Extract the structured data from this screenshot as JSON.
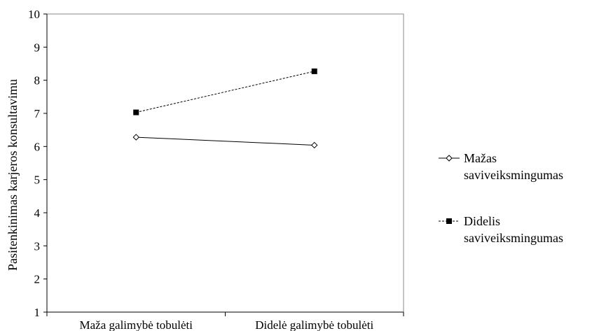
{
  "chart_data": {
    "type": "line",
    "title": "",
    "xlabel": "",
    "ylabel": "Pasitenkinimas karjeros konsultavimu",
    "categories": [
      "Maža galimybė tobulėti",
      "Didelė galimybė tobulėti"
    ],
    "ylim": [
      1,
      10
    ],
    "yticks": [
      "1",
      "2",
      "3",
      "4",
      "5",
      "6",
      "7",
      "8",
      "9",
      "10"
    ],
    "grid": false,
    "legend_position": "right",
    "series": [
      {
        "name": "Mažas saviveiksmingumas",
        "name_lines": [
          "Mažas",
          "saviveiksmingumas"
        ],
        "values": [
          6.28,
          6.04
        ],
        "marker": "diamond-open",
        "line_style": "solid",
        "color": "#000000"
      },
      {
        "name": "Didelis saviveiksmingumas",
        "name_lines": [
          "Didelis",
          "saviveiksmingumas"
        ],
        "values": [
          7.03,
          8.27
        ],
        "marker": "square-filled",
        "line_style": "dashed",
        "color": "#000000"
      }
    ]
  }
}
